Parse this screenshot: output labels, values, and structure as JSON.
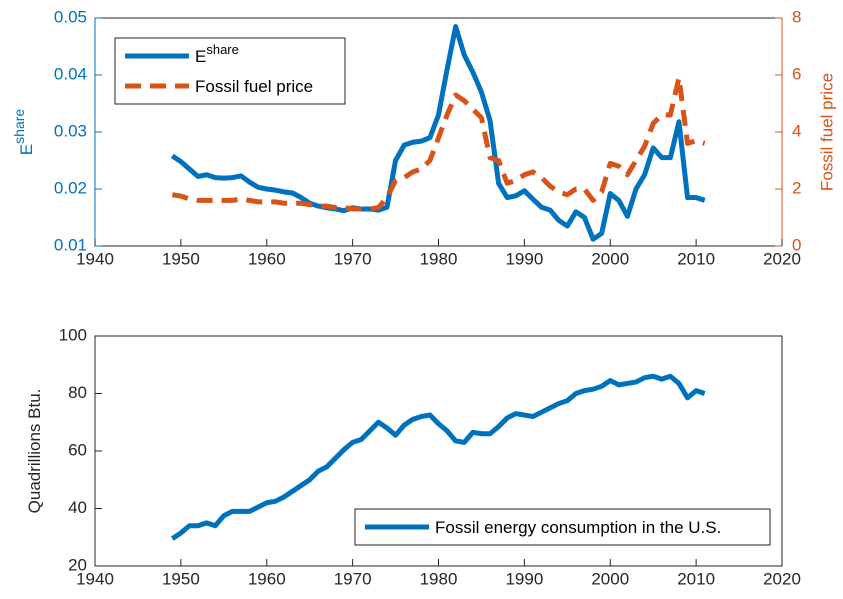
{
  "chart_data": [
    {
      "type": "line",
      "ylabel": "E",
      "ylabel_sup": "share",
      "y2label": "Fossil fuel price",
      "x": [
        1949,
        1950,
        1951,
        1952,
        1953,
        1954,
        1955,
        1956,
        1957,
        1958,
        1959,
        1960,
        1961,
        1962,
        1963,
        1964,
        1965,
        1966,
        1967,
        1968,
        1969,
        1970,
        1971,
        1972,
        1973,
        1974,
        1975,
        1976,
        1977,
        1978,
        1979,
        1980,
        1981,
        1982,
        1983,
        1984,
        1985,
        1986,
        1987,
        1988,
        1989,
        1990,
        1991,
        1992,
        1993,
        1994,
        1995,
        1996,
        1997,
        1998,
        1999,
        2000,
        2001,
        2002,
        2003,
        2004,
        2005,
        2006,
        2007,
        2008,
        2009,
        2010,
        2011
      ],
      "series": [
        {
          "name": "E",
          "name_sup": "share",
          "color": "#0072BD",
          "axis": "y",
          "values": [
            0.0258,
            0.0248,
            0.0235,
            0.0222,
            0.0225,
            0.022,
            0.0219,
            0.022,
            0.0223,
            0.0212,
            0.0203,
            0.02,
            0.0198,
            0.0195,
            0.0193,
            0.0185,
            0.0175,
            0.017,
            0.0167,
            0.0165,
            0.0162,
            0.0167,
            0.0165,
            0.0165,
            0.0163,
            0.0168,
            0.025,
            0.0277,
            0.0282,
            0.0284,
            0.029,
            0.033,
            0.041,
            0.0485,
            0.0435,
            0.0405,
            0.037,
            0.032,
            0.021,
            0.0185,
            0.0188,
            0.0197,
            0.0182,
            0.0168,
            0.0163,
            0.0145,
            0.0135,
            0.016,
            0.015,
            0.0112,
            0.0122,
            0.0192,
            0.018,
            0.0152,
            0.02,
            0.0225,
            0.0272,
            0.0255,
            0.0255,
            0.0318,
            0.0185,
            0.0185,
            0.018
          ]
        },
        {
          "name": "Fossil fuel price",
          "color": "#D95319",
          "axis": "y2",
          "dashed": true,
          "values": [
            1.8,
            1.75,
            1.65,
            1.6,
            1.6,
            1.6,
            1.6,
            1.6,
            1.65,
            1.6,
            1.55,
            1.55,
            1.55,
            1.5,
            1.5,
            1.5,
            1.45,
            1.4,
            1.4,
            1.35,
            1.35,
            1.3,
            1.3,
            1.3,
            1.35,
            1.7,
            2.3,
            2.4,
            2.6,
            2.7,
            3.0,
            3.8,
            4.6,
            5.3,
            5.1,
            4.8,
            4.5,
            3.1,
            3.0,
            2.2,
            2.3,
            2.5,
            2.6,
            2.4,
            2.1,
            1.9,
            1.8,
            2.0,
            2.0,
            1.6,
            1.9,
            2.9,
            2.8,
            2.5,
            3.0,
            3.5,
            4.3,
            4.6,
            4.6,
            5.9,
            3.6,
            3.7,
            3.6
          ]
        }
      ],
      "xlim": [
        1940,
        2020
      ],
      "xticks": [
        1940,
        1950,
        1960,
        1970,
        1980,
        1990,
        2000,
        2010,
        2020
      ],
      "ylim": [
        0.01,
        0.05
      ],
      "yticks": [
        0.01,
        0.02,
        0.03,
        0.04,
        0.05
      ],
      "y2lim": [
        0,
        8
      ],
      "y2ticks": [
        0,
        2,
        4,
        6,
        8
      ],
      "legend": "upper left"
    },
    {
      "type": "line",
      "ylabel": "Quadrillions Btu.",
      "x": [
        1949,
        1950,
        1951,
        1952,
        1953,
        1954,
        1955,
        1956,
        1957,
        1958,
        1959,
        1960,
        1961,
        1962,
        1963,
        1964,
        1965,
        1966,
        1967,
        1968,
        1969,
        1970,
        1971,
        1972,
        1973,
        1974,
        1975,
        1976,
        1977,
        1978,
        1979,
        1980,
        1981,
        1982,
        1983,
        1984,
        1985,
        1986,
        1987,
        1988,
        1989,
        1990,
        1991,
        1992,
        1993,
        1994,
        1995,
        1996,
        1997,
        1998,
        1999,
        2000,
        2001,
        2002,
        2003,
        2004,
        2005,
        2006,
        2007,
        2008,
        2009,
        2010,
        2011
      ],
      "series": [
        {
          "name": "Fossil energy consumption in the U.S.",
          "color": "#0072BD",
          "axis": "y",
          "values": [
            29.5,
            31.5,
            34,
            34,
            35,
            34,
            37.5,
            39,
            39,
            39,
            40.5,
            42,
            42.5,
            44,
            46,
            48,
            50,
            53,
            54.5,
            57.5,
            60.5,
            63,
            64,
            67,
            70,
            68,
            65.5,
            69,
            71,
            72,
            72.5,
            69.5,
            67,
            63.5,
            63,
            66.5,
            66,
            66,
            68.5,
            71.5,
            73,
            72.5,
            72,
            73.5,
            75,
            76.5,
            77.5,
            80,
            81,
            81.5,
            82.5,
            84.5,
            83,
            83.5,
            84,
            85.5,
            86,
            85,
            86,
            83.5,
            78.5,
            81,
            80
          ]
        }
      ],
      "xlim": [
        1940,
        2020
      ],
      "xticks": [
        1940,
        1950,
        1960,
        1970,
        1980,
        1990,
        2000,
        2010,
        2020
      ],
      "ylim": [
        20,
        100
      ],
      "yticks": [
        20,
        40,
        60,
        80,
        100
      ],
      "legend": "lower right"
    }
  ]
}
